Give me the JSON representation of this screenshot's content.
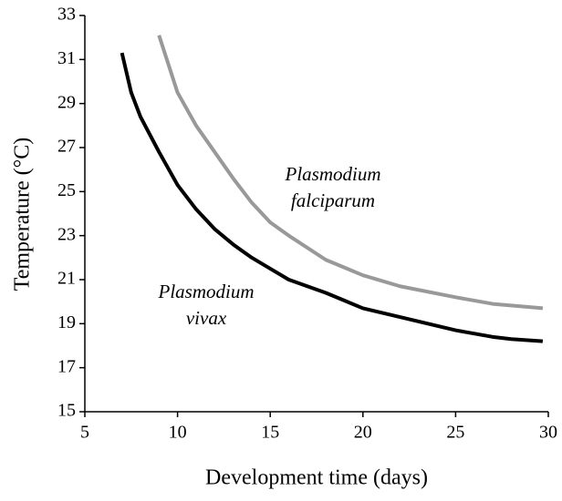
{
  "chart_data": {
    "type": "line",
    "x_label": "Development time (days)",
    "y_label": "Temperature (°C)",
    "xlim": [
      5,
      30
    ],
    "xticks": [
      5,
      10,
      15,
      20,
      25,
      30
    ],
    "ylim": [
      15,
      33
    ],
    "yticks": [
      15,
      17,
      19,
      21,
      23,
      25,
      27,
      29,
      31,
      33
    ],
    "grid": false,
    "series": [
      {
        "color": "#999999",
        "x": [
          9,
          10,
          11,
          12,
          13,
          14,
          15,
          16,
          18,
          20,
          22,
          25,
          27,
          29.7
        ],
        "values": [
          32.1,
          29.5,
          28,
          26.8,
          25.6,
          24.5,
          23.6,
          23,
          21.9,
          21.2,
          20.7,
          20.2,
          19.9,
          19.7
        ]
      },
      {
        "color": "#000000",
        "x": [
          7,
          7.5,
          8,
          9,
          10,
          11,
          12,
          13,
          14,
          15,
          16,
          18,
          20,
          22,
          25,
          27,
          28,
          29.7
        ],
        "values": [
          31.3,
          29.5,
          28.4,
          26.8,
          25.3,
          24.2,
          23.3,
          22.6,
          22,
          21.5,
          21,
          20.4,
          19.7,
          19.3,
          18.7,
          18.4,
          18.3,
          18.2
        ]
      }
    ],
    "annotations": [
      [
        "Plasmodium",
        "falciparum"
      ],
      [
        "Plasmodium",
        "vivax"
      ]
    ]
  }
}
